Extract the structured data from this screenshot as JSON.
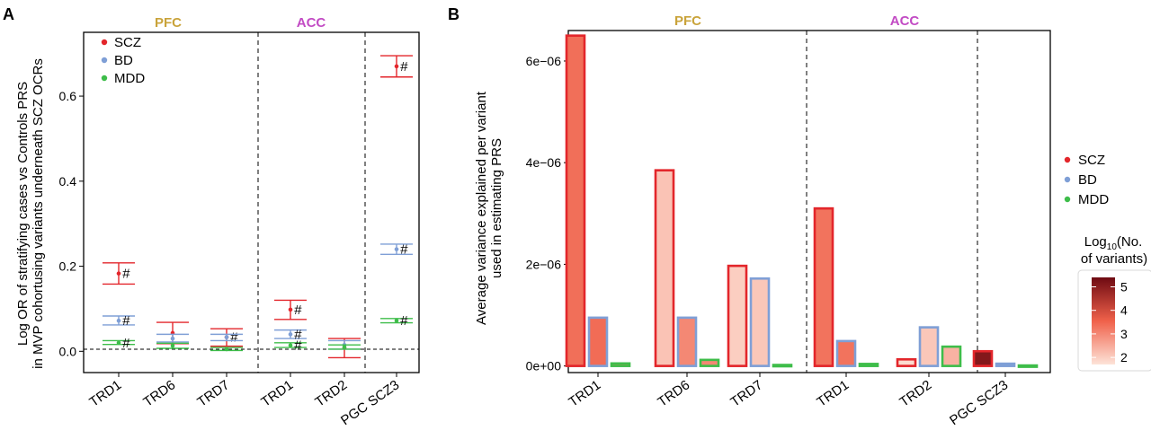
{
  "panels": {
    "a": {
      "letter": "A"
    },
    "b": {
      "letter": "B"
    }
  },
  "colors": {
    "SCZ": "#e3262b",
    "BD": "#7f9fd6",
    "MDD": "#3ebd4a",
    "PFC": "#c9a33a",
    "ACC": "#c24bc4"
  },
  "chart_data": [
    {
      "panel": "A",
      "type": "scatter",
      "group_labels": [
        "PFC",
        "ACC"
      ],
      "ylabel": "Log OR of stratifying cases vs Controls PRS in MVP cohortusing variants underneath SCZ OCRs",
      "ylabel_lines": [
        "Log OR of stratifying cases vs Controls PRS",
        "in MVP cohortusing variants underneath SCZ OCRs"
      ],
      "categories": [
        "TRD1",
        "TRD6",
        "TRD7",
        "TRD1",
        "TRD2",
        "PGC SCZ3"
      ],
      "y_ticks": [
        "0.0",
        "0.2",
        "0.4",
        "0.6"
      ],
      "ylim": [
        -0.05,
        0.75
      ],
      "legend": {
        "entries": [
          "SCZ",
          "BD",
          "MDD"
        ],
        "placement": "top-left"
      },
      "reference_line": 0,
      "significance_marker": "#",
      "series": [
        {
          "name": "SCZ",
          "values": [
            0.183,
            0.043,
            0.033,
            0.098,
            0.008,
            0.67
          ],
          "lower": [
            0.158,
            0.018,
            0.012,
            0.075,
            -0.015,
            0.645
          ],
          "upper": [
            0.208,
            0.068,
            0.053,
            0.12,
            0.03,
            0.695
          ],
          "marked": [
            true,
            false,
            true,
            true,
            false,
            true
          ]
        },
        {
          "name": "BD",
          "values": [
            0.072,
            0.03,
            0.033,
            0.04,
            0.015,
            0.24
          ],
          "lower": [
            0.062,
            0.022,
            0.025,
            0.03,
            0.005,
            0.228
          ],
          "upper": [
            0.083,
            0.04,
            0.04,
            0.05,
            0.025,
            0.252
          ],
          "marked": [
            true,
            false,
            false,
            true,
            false,
            true
          ]
        },
        {
          "name": "MDD",
          "values": [
            0.02,
            0.013,
            0.005,
            0.014,
            0.01,
            0.072
          ],
          "lower": [
            0.016,
            0.007,
            0.002,
            0.009,
            0.005,
            0.067
          ],
          "upper": [
            0.025,
            0.019,
            0.009,
            0.02,
            0.015,
            0.077
          ],
          "marked": [
            true,
            false,
            false,
            true,
            false,
            true
          ]
        }
      ]
    },
    {
      "panel": "B",
      "type": "bar",
      "group_labels": [
        "PFC",
        "ACC"
      ],
      "ylabel": "Average variance explained per variant used in estimating PRS",
      "ylabel_lines": [
        "Average variance explained per variant",
        "used in estimating PRS"
      ],
      "categories": [
        "TRD1",
        "TRD6",
        "TRD7",
        "TRD1",
        "TRD2",
        "PGC SCZ3"
      ],
      "y_ticks": [
        "0e+00",
        "2e−06",
        "4e−06",
        "6e−06"
      ],
      "ylim": [
        -1.3e-07,
        6.6e-06
      ],
      "legend": {
        "entries": [
          "SCZ",
          "BD",
          "MDD"
        ],
        "placement": "right"
      },
      "colorbar": {
        "title": "Log10(No. of variants)",
        "title_line1_prefix": "Log",
        "title_line1_sub": "10",
        "title_line1_suffix": "(No.",
        "title_line2": "of variants)",
        "ticks": [
          "2",
          "3",
          "4",
          "5"
        ],
        "range": [
          1.7,
          5.4
        ],
        "low_color": "#fde3d8",
        "mid_color": "#f0614a",
        "high_color": "#6e0a12"
      },
      "series": [
        {
          "name": "SCZ",
          "values": [
            6.5e-06,
            3.85e-06,
            1.97e-06,
            3.1e-06,
            1.3e-07,
            2.9e-07
          ],
          "log10_variants": [
            3.35,
            2.15,
            2.0,
            3.3,
            1.8,
            5.1
          ]
        },
        {
          "name": "BD",
          "values": [
            9.5e-07,
            9.5e-07,
            1.72e-06,
            4.9e-07,
            7.6e-07,
            4.5e-08
          ],
          "log10_variants": [
            3.4,
            3.0,
            2.1,
            3.3,
            2.1,
            3.0
          ]
        },
        {
          "name": "MDD",
          "values": [
            5e-08,
            1.2e-07,
            2e-08,
            4e-08,
            3.8e-07,
            1e-08
          ],
          "log10_variants": [
            3.3,
            3.0,
            3.0,
            3.4,
            2.4,
            2.7
          ]
        }
      ]
    }
  ]
}
